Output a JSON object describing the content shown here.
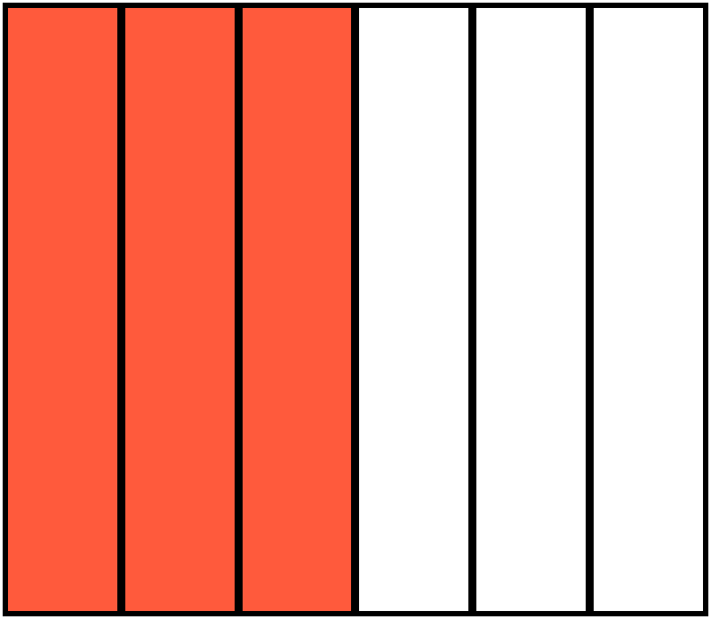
{
  "diagram": {
    "type": "fraction-bar",
    "total_parts": 6,
    "shaded_parts": 3,
    "colors": {
      "shaded": "#FF5A3C",
      "unshaded": "#FFFFFF",
      "border": "#000000"
    },
    "cells": [
      {
        "shaded": true
      },
      {
        "shaded": true
      },
      {
        "shaded": true
      },
      {
        "shaded": false
      },
      {
        "shaded": false
      },
      {
        "shaded": false
      }
    ]
  }
}
